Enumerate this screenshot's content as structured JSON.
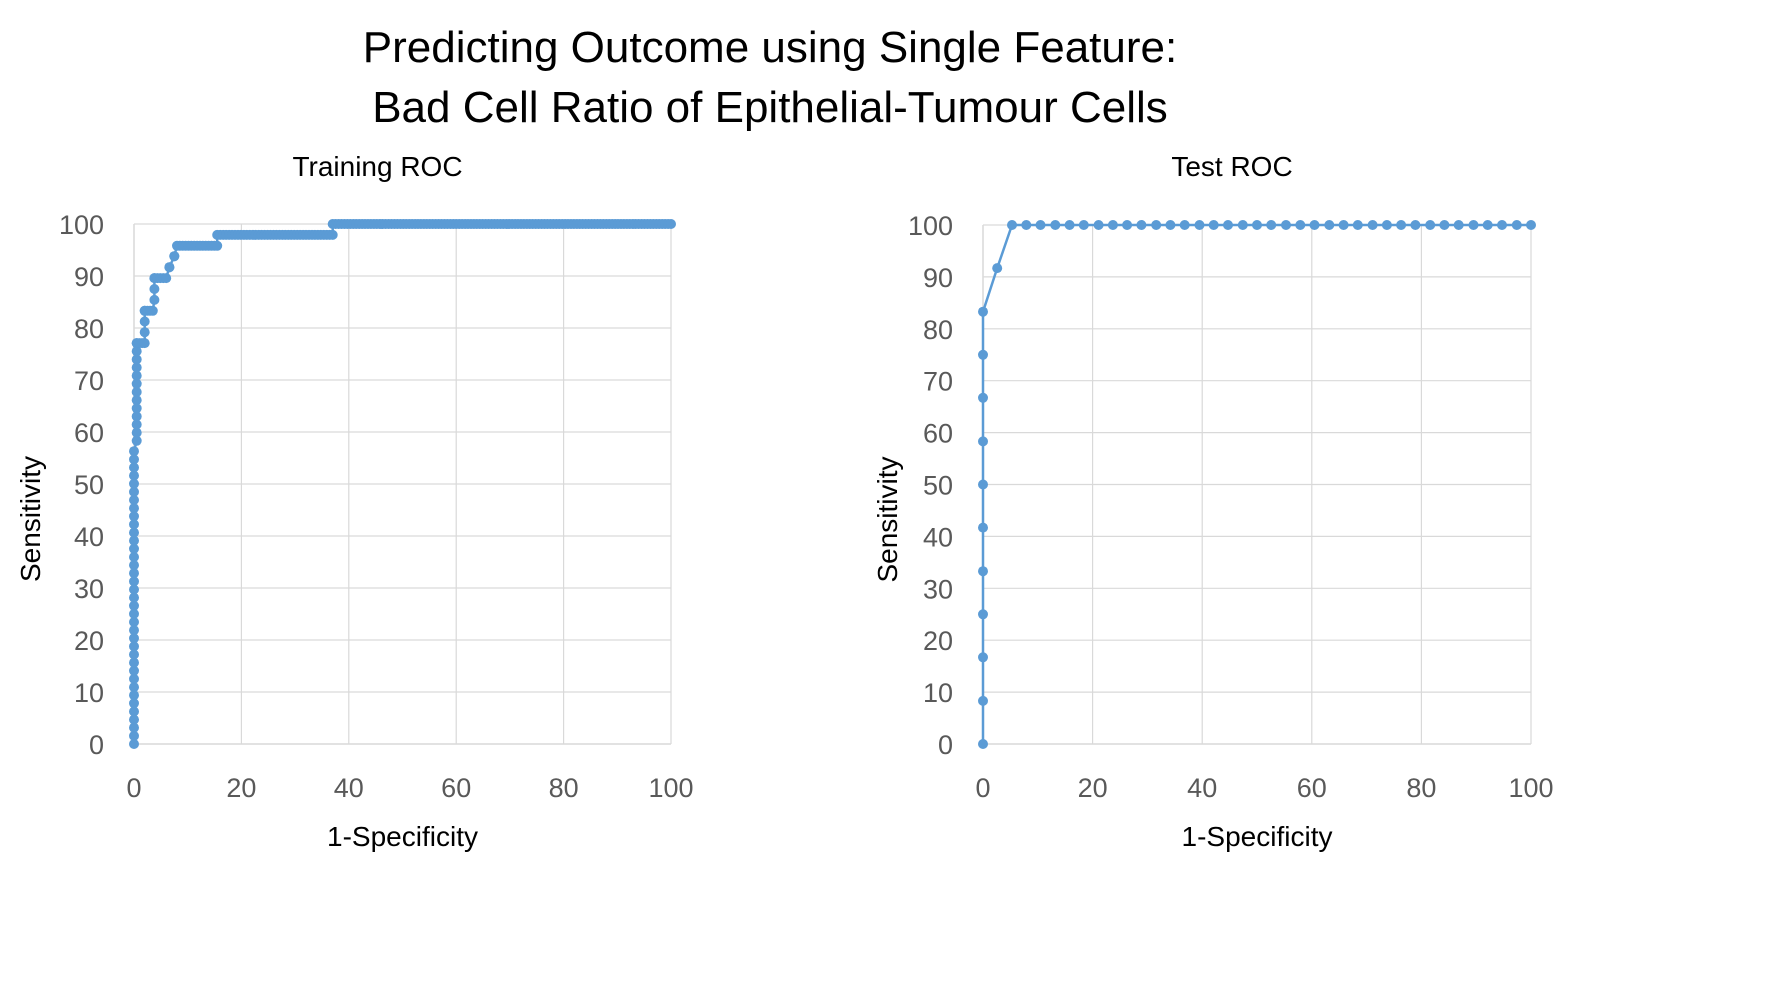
{
  "title_line1": "Predicting Outcome using Single Feature:",
  "title_line2": "Bad Cell Ratio of Epithelial-Tumour Cells",
  "colors": {
    "series": "#5B9BD5",
    "grid": "#d9d9d9",
    "tick": "#595959"
  },
  "chart_data": [
    {
      "type": "line",
      "title": "Training ROC",
      "xlabel": "1-Specificity",
      "ylabel": "Sensitivity",
      "xlim": [
        0,
        100
      ],
      "ylim": [
        0,
        100
      ],
      "xticks": [
        0,
        20,
        40,
        60,
        80,
        100
      ],
      "yticks": [
        0,
        10,
        20,
        30,
        40,
        50,
        60,
        70,
        80,
        90,
        100
      ],
      "grid": true,
      "markers": true,
      "segments": [
        {
          "x": [
            0,
            0
          ],
          "y": [
            0,
            56.3
          ],
          "step": 1.56
        },
        {
          "x": [
            0.5,
            0.5
          ],
          "y": [
            58.3,
            77.1
          ],
          "step": 1.56
        },
        {
          "x": [
            0.5,
            2.0
          ],
          "y": [
            77.1,
            77.1
          ],
          "step": 0.5
        },
        {
          "x": [
            2.0,
            2.0
          ],
          "y": [
            79.2,
            83.3
          ],
          "step": 2.08
        },
        {
          "x": [
            2.0,
            3.5
          ],
          "y": [
            83.3,
            83.3
          ],
          "step": 0.5
        },
        {
          "x": [
            3.8,
            3.8
          ],
          "y": [
            85.4,
            89.6
          ],
          "step": 2.08
        },
        {
          "x": [
            3.8,
            6.0
          ],
          "y": [
            89.6,
            89.6
          ],
          "step": 0.55
        },
        {
          "x": [
            6.6,
            6.6
          ],
          "y": [
            91.7,
            91.7
          ],
          "step": 1
        },
        {
          "x": [
            7.5,
            7.5
          ],
          "y": [
            93.8,
            93.8
          ],
          "step": 1
        },
        {
          "x": [
            8.0,
            15.5
          ],
          "y": [
            95.8,
            95.8
          ],
          "step": 0.55
        },
        {
          "x": [
            15.5,
            37.0
          ],
          "y": [
            97.9,
            97.9
          ],
          "step": 0.55
        },
        {
          "x": [
            37.0,
            100
          ],
          "y": [
            100,
            100
          ],
          "step": 0.55
        }
      ]
    },
    {
      "type": "line",
      "title": "Test ROC",
      "xlabel": "1-Specificity",
      "ylabel": "Sensitivity",
      "xlim": [
        0,
        100
      ],
      "ylim": [
        0,
        100
      ],
      "xticks": [
        0,
        20,
        40,
        60,
        80,
        100
      ],
      "yticks": [
        0,
        10,
        20,
        30,
        40,
        50,
        60,
        70,
        80,
        90,
        100
      ],
      "grid": true,
      "markers": true,
      "x": [
        0,
        0,
        0,
        0,
        0,
        0,
        0,
        0,
        0,
        0,
        0,
        2.6,
        5.3,
        7.9,
        10.5,
        13.2,
        15.8,
        18.4,
        21.1,
        23.7,
        26.3,
        28.9,
        31.6,
        34.2,
        36.8,
        39.5,
        42.1,
        44.7,
        47.4,
        50.0,
        52.6,
        55.3,
        57.9,
        60.5,
        63.2,
        65.8,
        68.4,
        71.1,
        73.7,
        76.3,
        78.9,
        81.6,
        84.2,
        86.8,
        89.5,
        92.1,
        94.7,
        97.4,
        100
      ],
      "y": [
        0,
        8.3,
        16.7,
        25.0,
        33.3,
        41.7,
        50.0,
        58.3,
        66.7,
        75.0,
        83.3,
        91.7,
        100,
        100,
        100,
        100,
        100,
        100,
        100,
        100,
        100,
        100,
        100,
        100,
        100,
        100,
        100,
        100,
        100,
        100,
        100,
        100,
        100,
        100,
        100,
        100,
        100,
        100,
        100,
        100,
        100,
        100,
        100,
        100,
        100,
        100,
        100,
        100,
        100
      ]
    }
  ]
}
